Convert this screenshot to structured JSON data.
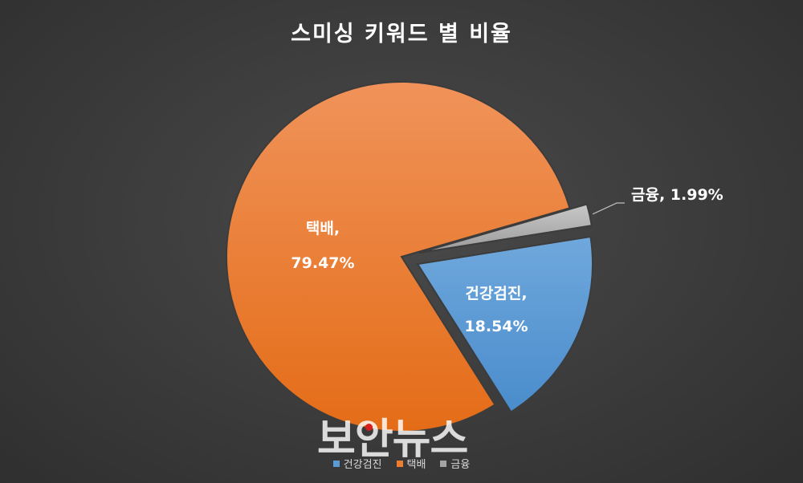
{
  "chart_data": {
    "type": "pie",
    "title": "스미싱 키워드 별 비율",
    "slices": [
      {
        "name": "건강검진",
        "value": 18.54,
        "label_name": "건강검진,",
        "label_value": "18.54%",
        "color": "#5b9bd5"
      },
      {
        "name": "택배",
        "value": 79.47,
        "label_name": "택배,",
        "label_value": "79.47%",
        "color": "#ed7d31"
      },
      {
        "name": "금융",
        "value": 1.99,
        "label": "금융, 1.99%",
        "color": "#a5a5a5"
      }
    ],
    "legend": [
      "건강검진",
      "택배",
      "금융"
    ],
    "legend_position": "bottom"
  },
  "watermark": "보안뉴스",
  "colors": {
    "background": "#404040",
    "watermark_accent": "#d81e1e"
  }
}
